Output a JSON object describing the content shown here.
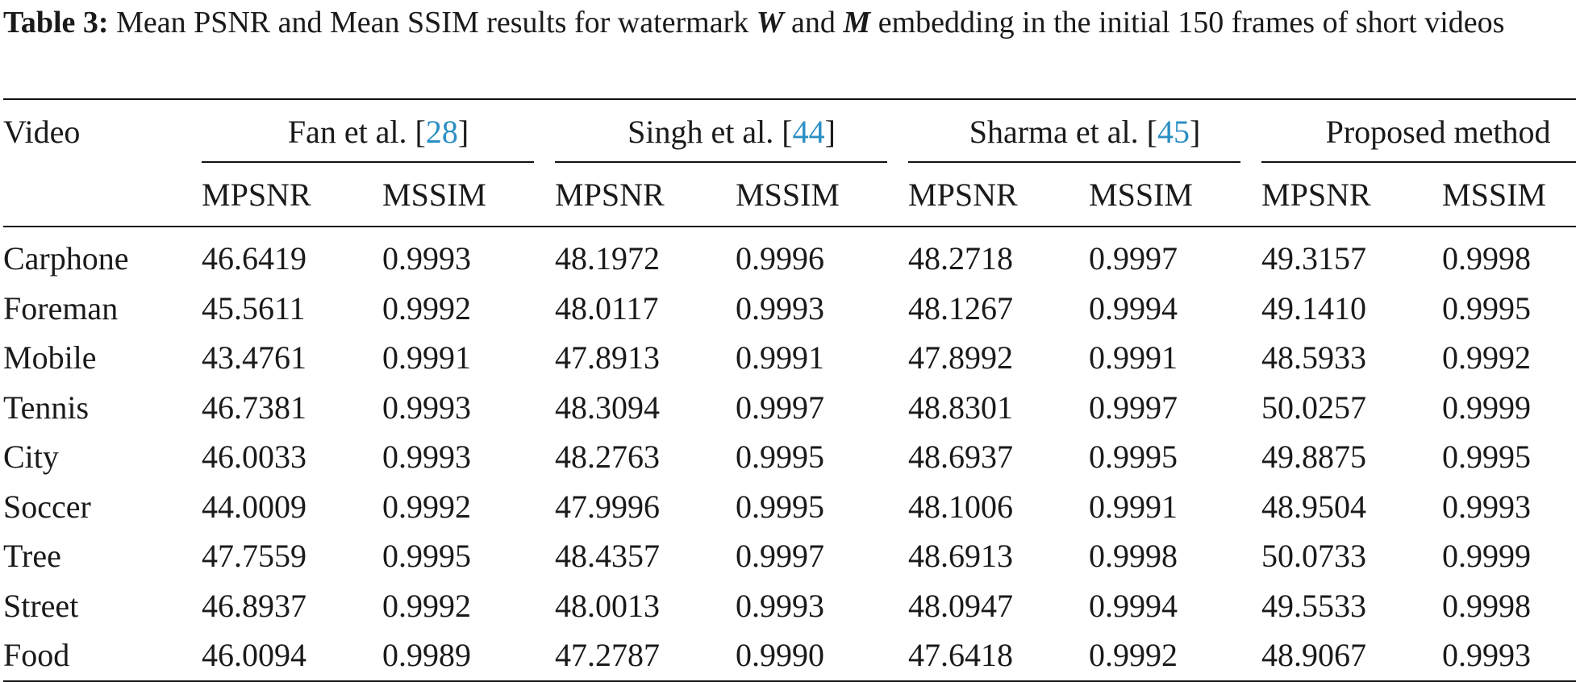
{
  "caption": {
    "label": "Table 3:",
    "text_before_w": "Mean PSNR and Mean SSIM results for watermark",
    "symbol_w": "W",
    "text_and": "and",
    "symbol_m": "M",
    "text_after_m": "embedding in the initial 150 frames of short videos"
  },
  "table": {
    "row_header": "Video",
    "groups": [
      {
        "name": "Fan et al. [",
        "cite": "28",
        "close": "]"
      },
      {
        "name": "Singh et al. [",
        "cite": "44",
        "close": "]"
      },
      {
        "name": "Sharma et al. [",
        "cite": "45",
        "close": "]"
      },
      {
        "name": "Proposed method",
        "cite": "",
        "close": ""
      }
    ],
    "subheaders": [
      "MPSNR",
      "MSSIM",
      "MPSNR",
      "MSSIM",
      "MPSNR",
      "MSSIM",
      "MPSNR",
      "MSSIM"
    ],
    "rows": [
      [
        "Carphone",
        "46.6419",
        "0.9993",
        "48.1972",
        "0.9996",
        "48.2718",
        "0.9997",
        "49.3157",
        "0.9998"
      ],
      [
        "Foreman",
        "45.5611",
        "0.9992",
        "48.0117",
        "0.9993",
        "48.1267",
        "0.9994",
        "49.1410",
        "0.9995"
      ],
      [
        "Mobile",
        "43.4761",
        "0.9991",
        "47.8913",
        "0.9991",
        "47.8992",
        "0.9991",
        "48.5933",
        "0.9992"
      ],
      [
        "Tennis",
        "46.7381",
        "0.9993",
        "48.3094",
        "0.9997",
        "48.8301",
        "0.9997",
        "50.0257",
        "0.9999"
      ],
      [
        "City",
        "46.0033",
        "0.9993",
        "48.2763",
        "0.9995",
        "48.6937",
        "0.9995",
        "49.8875",
        "0.9995"
      ],
      [
        "Soccer",
        "44.0009",
        "0.9992",
        "47.9996",
        "0.9995",
        "48.1006",
        "0.9991",
        "48.9504",
        "0.9993"
      ],
      [
        "Tree",
        "47.7559",
        "0.9995",
        "48.4357",
        "0.9997",
        "48.6913",
        "0.9998",
        "50.0733",
        "0.9999"
      ],
      [
        "Street",
        "46.8937",
        "0.9992",
        "48.0013",
        "0.9993",
        "48.0947",
        "0.9994",
        "49.5533",
        "0.9998"
      ],
      [
        "Food",
        "46.0094",
        "0.9989",
        "47.2787",
        "0.9990",
        "47.6418",
        "0.9992",
        "48.9067",
        "0.9993"
      ]
    ]
  }
}
